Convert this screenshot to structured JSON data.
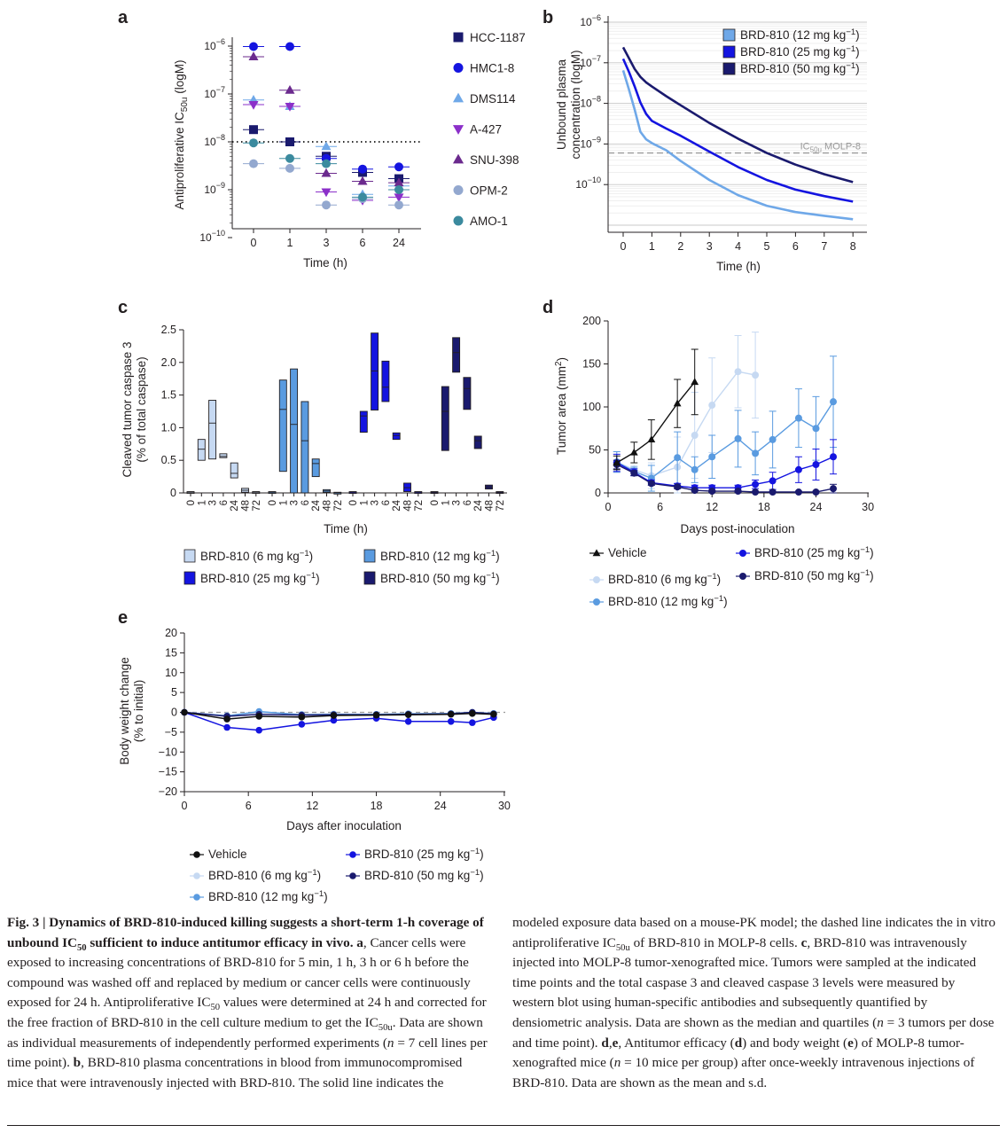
{
  "panels": {
    "a": {
      "letter": "a",
      "ylabel": "Antiproliferative IC",
      "ylabel_sub": "50u",
      "ylabel_suffix": " (logM)",
      "xlabel": "Time (h)",
      "yticks": [
        "10",
        "10",
        "10",
        "10",
        "10"
      ],
      "ytick_exps": [
        "−6",
        "−7",
        "−8",
        "−9",
        "−10"
      ],
      "xticks": [
        "0",
        "1",
        "3",
        "6",
        "24"
      ],
      "legend": [
        "HCC-1187",
        "HMC1-8",
        "DMS114",
        "A-427",
        "SNU-398",
        "OPM-2",
        "AMO-1"
      ]
    },
    "b": {
      "letter": "b",
      "ylabel_line1": "Unbound plasma",
      "ylabel_line2": "concentration (logM)",
      "xlabel": "Time (h)",
      "xticks": [
        "0",
        "1",
        "2",
        "3",
        "4",
        "5",
        "6",
        "7",
        "8"
      ],
      "ytick_exps": [
        "−6",
        "−7",
        "−8",
        "−9",
        "−10"
      ],
      "yticks": [
        "10",
        "10",
        "10",
        "10",
        "10"
      ],
      "threshold_label": "IC",
      "threshold_sub": "50u",
      "threshold_suffix": " MOLP-8",
      "legend": [
        "BRD-810 (12 mg kg",
        "BRD-810 (25 mg kg",
        "BRD-810 (50 mg kg"
      ],
      "legend_exp": "−1",
      "legend_close": ")"
    },
    "c": {
      "letter": "c",
      "ylabel_line1": "Cleaved tumor caspase 3",
      "ylabel_line2": "(% of total caspase)",
      "xlabel": "Time (h)",
      "yticks": [
        "0",
        "0.5",
        "1.0",
        "1.5",
        "2.0",
        "2.5"
      ],
      "xticks": [
        "0",
        "1",
        "3",
        "6",
        "24",
        "48",
        "72"
      ],
      "legend": [
        "BRD-810 (6 mg kg",
        "BRD-810 (12 mg kg",
        "BRD-810 (25 mg kg",
        "BRD-810 (50 mg kg"
      ],
      "legend_exp": "−1",
      "legend_close": ")"
    },
    "d": {
      "letter": "d",
      "ylabel": "Tumor area (mm",
      "ylabel_exp": "2",
      "ylabel_close": ")",
      "xlabel": "Days post-inoculation",
      "yticks": [
        "0",
        "50",
        "100",
        "150",
        "200"
      ],
      "xticks": [
        "0",
        "6",
        "12",
        "18",
        "24",
        "30"
      ],
      "legend": [
        "Vehicle",
        "BRD-810 (6 mg kg",
        "BRD-810 (12 mg kg",
        "BRD-810 (25 mg kg",
        "BRD-810 (50 mg kg"
      ],
      "legend_exp": "−1",
      "legend_close": ")"
    },
    "e": {
      "letter": "e",
      "ylabel_line1": "Body weight change",
      "ylabel_line2": "(% to initial)",
      "xlabel": "Days after inoculation",
      "yticks": [
        "20",
        "15",
        "10",
        "5",
        "0",
        "−5",
        "−10",
        "−15",
        "−20"
      ],
      "xticks": [
        "0",
        "6",
        "12",
        "18",
        "24",
        "30"
      ],
      "legend": [
        "Vehicle",
        "BRD-810 (6 mg kg",
        "BRD-810 (12 mg kg",
        "BRD-810 (25 mg kg",
        "BRD-810 (50 mg kg"
      ],
      "legend_exp": "−1",
      "legend_close": ")"
    }
  },
  "colors": {
    "navy": "#1a1a6e",
    "blue": "#1414e0",
    "sky": "#6fa8e8",
    "purple": "#8b2fc9",
    "violet": "#6b2a8e",
    "grayblue": "#93a8cf",
    "teal": "#3b8a9e",
    "pale": "#c6d9f2",
    "mid": "#5a9be0",
    "black": "#111111"
  },
  "chart_data": [
    {
      "panel": "a",
      "type": "scatter",
      "x": [
        "0",
        "1",
        "3",
        "6",
        "24"
      ],
      "y_scale": "log",
      "ylim": [
        1e-10,
        1.5e-06
      ],
      "threshold": 1e-08,
      "series": [
        {
          "name": "HCC-1187",
          "marker": "square",
          "color": "#1a1a6e",
          "values": [
            1.8e-08,
            1e-08,
            5e-09,
            2.3e-09,
            1.7e-09
          ]
        },
        {
          "name": "HMC1-8",
          "marker": "circle",
          "color": "#1414e0",
          "values": [
            9.8e-07,
            9.8e-07,
            4.5e-09,
            2.7e-09,
            3e-09
          ]
        },
        {
          "name": "DMS114",
          "marker": "triangle-up",
          "color": "#6fa8e8",
          "values": [
            7.5e-08,
            5.5e-08,
            8e-09,
            8e-10,
            1.2e-09
          ]
        },
        {
          "name": "A-427",
          "marker": "triangle-down",
          "color": "#8b2fc9",
          "values": [
            6e-08,
            5.5e-08,
            9e-10,
            6e-10,
            7e-10
          ]
        },
        {
          "name": "SNU-398",
          "marker": "triangle-up",
          "color": "#6b2a8e",
          "values": [
            6e-07,
            1.2e-07,
            2.2e-09,
            1.5e-09,
            1.4e-09
          ]
        },
        {
          "name": "OPM-2",
          "marker": "circle",
          "color": "#93a8cf",
          "values": [
            3.5e-09,
            2.8e-09,
            4.8e-10,
            6.5e-10,
            4.8e-10
          ]
        },
        {
          "name": "AMO-1",
          "marker": "circle",
          "color": "#3b8a9e",
          "values": [
            9.5e-09,
            4.5e-09,
            3.5e-09,
            7e-10,
            1e-09
          ]
        }
      ]
    },
    {
      "panel": "b",
      "type": "line",
      "xlim": [
        0,
        8
      ],
      "y_scale": "log",
      "ylim": [
        1e-11,
        1.5e-06
      ],
      "threshold": 6e-10,
      "x": [
        0,
        0.2,
        0.4,
        0.6,
        0.8,
        1,
        1.5,
        2,
        3,
        4,
        5,
        6,
        7,
        8
      ],
      "series": [
        {
          "name": "BRD-810 (12 mg kg−1)",
          "color": "#6fa8e8",
          "values": [
            6.5e-08,
            2.2e-08,
            7e-09,
            2e-09,
            1.3e-09,
            1.05e-09,
            7e-10,
            3.8e-10,
            1.3e-10,
            5.5e-11,
            3e-11,
            2.1e-11,
            1.7e-11,
            1.4e-11
          ]
        },
        {
          "name": "BRD-810 (25 mg kg−1)",
          "color": "#1414e0",
          "values": [
            1.25e-07,
            6e-08,
            2.6e-08,
            1.05e-08,
            5.5e-09,
            3.7e-09,
            2.4e-09,
            1.6e-09,
            6.5e-10,
            2.7e-10,
            1.3e-10,
            7.5e-11,
            5.2e-11,
            3.8e-11
          ]
        },
        {
          "name": "BRD-810 (50 mg kg−1)",
          "color": "#1a1a6e",
          "values": [
            2.4e-07,
            1.3e-07,
            7e-08,
            4.5e-08,
            3.3e-08,
            2.6e-08,
            1.5e-08,
            9e-09,
            3.3e-09,
            1.35e-09,
            6e-10,
            3.1e-10,
            1.8e-10,
            1.15e-10
          ]
        }
      ]
    },
    {
      "panel": "c",
      "type": "box",
      "categories": [
        "0",
        "1",
        "3",
        "6",
        "24",
        "48",
        "72"
      ],
      "ylim": [
        0,
        2.5
      ],
      "series": [
        {
          "name": "BRD-810 (6 mg kg−1)",
          "color": "#c6d9f2",
          "boxes": [
            [
              0.0,
              0.01,
              0.02
            ],
            [
              0.5,
              0.67,
              0.82
            ],
            [
              0.52,
              1.07,
              1.42
            ],
            [
              0.54,
              0.56,
              0.6
            ],
            [
              0.23,
              0.3,
              0.46
            ],
            [
              0.01,
              0.04,
              0.07
            ],
            [
              0.0,
              0.01,
              0.02
            ]
          ]
        },
        {
          "name": "BRD-810 (12 mg kg−1)",
          "color": "#5a9be0",
          "boxes": [
            [
              0.0,
              0.01,
              0.02
            ],
            [
              0.33,
              1.28,
              1.73
            ],
            [
              0.0,
              1.05,
              1.9
            ],
            [
              0.0,
              0.8,
              1.4
            ],
            [
              0.25,
              0.45,
              0.52
            ],
            [
              0.01,
              0.03,
              0.05
            ],
            [
              0.0,
              0.0,
              0.01
            ]
          ]
        },
        {
          "name": "BRD-810 (25 mg kg−1)",
          "color": "#1414e0",
          "boxes": [
            [
              0.0,
              0.01,
              0.02
            ],
            [
              0.93,
              1.18,
              1.25
            ],
            [
              1.27,
              1.87,
              2.45
            ],
            [
              1.4,
              1.62,
              2.02
            ],
            [
              0.82,
              0.88,
              0.92
            ],
            [
              0.02,
              0.08,
              0.15
            ],
            [
              0.0,
              0.01,
              0.02
            ]
          ]
        },
        {
          "name": "BRD-810 (50 mg kg−1)",
          "color": "#1a1a6e",
          "boxes": [
            [
              0.0,
              0.01,
              0.02
            ],
            [
              0.65,
              1.25,
              1.63
            ],
            [
              1.85,
              2.15,
              2.38
            ],
            [
              1.28,
              1.6,
              1.77
            ],
            [
              0.68,
              0.8,
              0.87
            ],
            [
              0.06,
              0.09,
              0.12
            ],
            [
              0.0,
              0.01,
              0.02
            ]
          ]
        }
      ]
    },
    {
      "panel": "d",
      "type": "line",
      "xlim": [
        0,
        30
      ],
      "ylim": [
        0,
        200
      ],
      "series": [
        {
          "name": "Vehicle",
          "marker": "triangle-up",
          "color": "#111111",
          "x": [
            1,
            3,
            5,
            8,
            10
          ],
          "values": [
            35,
            47,
            62,
            104,
            129
          ],
          "err": [
            8,
            12,
            23,
            28,
            38
          ]
        },
        {
          "name": "BRD-810 (6 mg kg−1)",
          "marker": "circle",
          "color": "#c6d9f2",
          "x": [
            1,
            3,
            5,
            8,
            10,
            12,
            15,
            17
          ],
          "values": [
            36,
            27,
            20,
            30,
            67,
            102,
            141,
            137
          ],
          "err": [
            12,
            5,
            15,
            35,
            50,
            55,
            42,
            50
          ]
        },
        {
          "name": "BRD-810 (12 mg kg−1)",
          "marker": "circle",
          "color": "#5a9be0",
          "x": [
            1,
            3,
            5,
            8,
            10,
            12,
            15,
            17,
            19,
            22,
            24,
            26
          ],
          "values": [
            36,
            25,
            17,
            41,
            27,
            42,
            63,
            46,
            62,
            87,
            75,
            106
          ],
          "err": [
            12,
            5,
            15,
            30,
            15,
            25,
            33,
            25,
            33,
            34,
            37,
            53
          ]
        },
        {
          "name": "BRD-810 (25 mg kg−1)",
          "marker": "circle",
          "color": "#1414e0",
          "x": [
            1,
            3,
            5,
            8,
            10,
            12,
            15,
            17,
            19,
            22,
            24,
            26
          ],
          "values": [
            35,
            24,
            12,
            8,
            6,
            6,
            6,
            10,
            14,
            27,
            33,
            42
          ],
          "err": [
            10,
            4,
            3,
            3,
            3,
            3,
            3,
            5,
            10,
            15,
            18,
            20
          ]
        },
        {
          "name": "BRD-810 (50 mg kg−1)",
          "marker": "circle",
          "color": "#1a1a6e",
          "x": [
            1,
            3,
            5,
            8,
            10,
            12,
            15,
            17,
            19,
            22,
            24,
            26
          ],
          "values": [
            33,
            23,
            11,
            7,
            3,
            2,
            2,
            1,
            1,
            1,
            1,
            5
          ],
          "err": [
            5,
            3,
            2,
            2,
            1,
            1,
            1,
            1,
            1,
            1,
            1,
            5
          ]
        }
      ]
    },
    {
      "panel": "e",
      "type": "line",
      "xlim": [
        0,
        30
      ],
      "ylim": [
        -20,
        20
      ],
      "series": [
        {
          "name": "Vehicle",
          "marker": "circle",
          "color": "#111111",
          "x": [
            0,
            4,
            7,
            11,
            14,
            18,
            21,
            25,
            27,
            29
          ],
          "values": [
            0,
            -1.7,
            -1.0,
            -1.2,
            -0.8,
            -0.7,
            -0.6,
            -0.5,
            -0.3,
            -0.5
          ]
        },
        {
          "name": "BRD-810 (6 mg kg−1)",
          "marker": "circle",
          "color": "#c6d9f2",
          "x": [
            0,
            4,
            7,
            11,
            14,
            18,
            21,
            25,
            27,
            29
          ],
          "values": [
            0,
            -0.8,
            0.0,
            -0.5,
            -0.4,
            -0.5,
            -0.3,
            -0.4,
            -0.2,
            -0.3
          ]
        },
        {
          "name": "BRD-810 (12 mg kg−1)",
          "marker": "circle",
          "color": "#5a9be0",
          "x": [
            0,
            4,
            7,
            11,
            14,
            18,
            21,
            25,
            27,
            29
          ],
          "values": [
            0,
            -0.9,
            0.2,
            -0.6,
            -0.5,
            -0.5,
            -0.4,
            -0.3,
            0.0,
            -0.3
          ]
        },
        {
          "name": "BRD-810 (25 mg kg−1)",
          "marker": "circle",
          "color": "#1414e0",
          "x": [
            0,
            4,
            7,
            11,
            14,
            18,
            21,
            25,
            27,
            29
          ],
          "values": [
            0,
            -3.8,
            -4.5,
            -3.0,
            -2.0,
            -1.5,
            -2.3,
            -2.3,
            -2.6,
            -1.3
          ]
        },
        {
          "name": "BRD-810 (50 mg kg−1)",
          "marker": "circle",
          "color": "#1a1a6e",
          "x": [
            0,
            4,
            7,
            11,
            14,
            18,
            21,
            25,
            27,
            29
          ],
          "values": [
            0,
            -1.0,
            -0.5,
            -0.7,
            -0.6,
            -0.6,
            -0.5,
            -0.4,
            0.0,
            -0.4
          ]
        }
      ]
    }
  ],
  "caption": {
    "left": [
      {
        "bold": true,
        "text": "Fig. 3 | Dynamics of BRD-810-induced killing suggests a short-term 1-h coverage of unbound IC"
      },
      {
        "bold": true,
        "sub": true,
        "text": "50"
      },
      {
        "bold": true,
        "text": " sufficient to induce antitumor efficacy in vivo."
      },
      {
        "text": " "
      },
      {
        "bold": true,
        "text": "a"
      },
      {
        "text": ", Cancer cells were exposed to increasing concentrations of BRD-810 for 5 min, 1 h, 3 h or 6 h before the compound was washed off and replaced by medium or cancer cells were continuously exposed for 24 h. Antiproliferative IC"
      },
      {
        "sub": true,
        "text": "50"
      },
      {
        "text": " values were determined at 24 h and corrected for the free fraction of BRD-810 in the cell culture medium to get the IC"
      },
      {
        "sub": true,
        "text": "50u"
      },
      {
        "text": ". Data are shown as individual measurements of independently performed experiments ("
      },
      {
        "italic": true,
        "text": "n"
      },
      {
        "text": " = 7 cell lines per time point). "
      },
      {
        "bold": true,
        "text": "b"
      },
      {
        "text": ", BRD-810 plasma concentrations in blood from immunocompromised mice that were intravenously injected with BRD-810. The solid line indicates the"
      }
    ],
    "right": [
      {
        "text": "modeled exposure data based on a mouse-PK model; the dashed line indicates the in vitro antiproliferative IC"
      },
      {
        "sub": true,
        "text": "50u"
      },
      {
        "text": " of BRD-810 in MOLP-8 cells. "
      },
      {
        "bold": true,
        "text": "c"
      },
      {
        "text": ", BRD-810 was intravenously injected into MOLP-8 tumor-xenografted mice. Tumors were sampled at the indicated time points and the total caspase 3 and cleaved caspase 3 levels were measured by western blot using human-specific antibodies and subsequently quantified by densiometric analysis. Data are shown as the median and quartiles ("
      },
      {
        "italic": true,
        "text": "n"
      },
      {
        "text": " = 3 tumors per dose and time point). "
      },
      {
        "bold": true,
        "text": "d"
      },
      {
        "text": ","
      },
      {
        "bold": true,
        "text": "e"
      },
      {
        "text": ", Antitumor efficacy ("
      },
      {
        "bold": true,
        "text": "d"
      },
      {
        "text": ") and body weight ("
      },
      {
        "bold": true,
        "text": "e"
      },
      {
        "text": ") of MOLP-8 tumor-xenografted mice ("
      },
      {
        "italic": true,
        "text": "n"
      },
      {
        "text": " = 10 mice per group) after once-weekly intravenous injections of BRD-810. Data are shown as the mean and s.d."
      }
    ]
  }
}
